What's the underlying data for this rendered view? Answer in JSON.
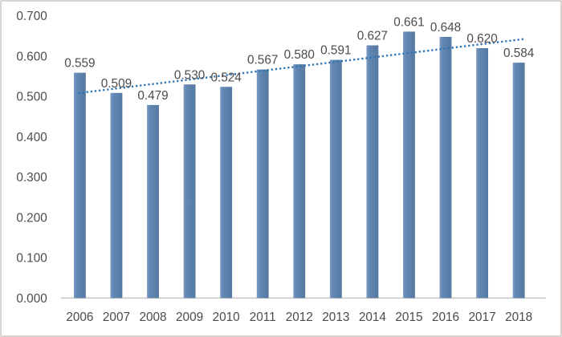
{
  "chart_data": {
    "type": "bar",
    "title": "",
    "xlabel": "",
    "ylabel": "",
    "categories": [
      "2006",
      "2007",
      "2008",
      "2009",
      "2010",
      "2011",
      "2012",
      "2013",
      "2014",
      "2015",
      "2016",
      "2017",
      "2018"
    ],
    "values": [
      0.559,
      0.509,
      0.479,
      0.53,
      0.524,
      0.567,
      0.58,
      0.591,
      0.627,
      0.661,
      0.648,
      0.62,
      0.584
    ],
    "data_labels": [
      "0.559",
      "0.509",
      "0.479",
      "0.530",
      "0.524",
      "0.567",
      "0.580",
      "0.591",
      "0.627",
      "0.661",
      "0.648",
      "0.620",
      "0.584"
    ],
    "y_ticks": [
      "0.700",
      "0.600",
      "0.500",
      "0.400",
      "0.300",
      "0.200",
      "0.100",
      "0.000"
    ],
    "ylim": [
      0,
      0.7
    ],
    "grid": "off",
    "legend": "none",
    "trendline": {
      "style": "dotted",
      "start_value": 0.509,
      "end_value": 0.641
    },
    "colors": {
      "bar_fill": "#6287b4",
      "bar_fill_light": "#7b9ac2",
      "bar_edge": "#55799f",
      "trendline": "#2e75b6",
      "axis_line": "#bfbfbf",
      "label_text": "#4f4a48",
      "frame_border": "#d8d4d2",
      "background": "#ffffff"
    }
  }
}
